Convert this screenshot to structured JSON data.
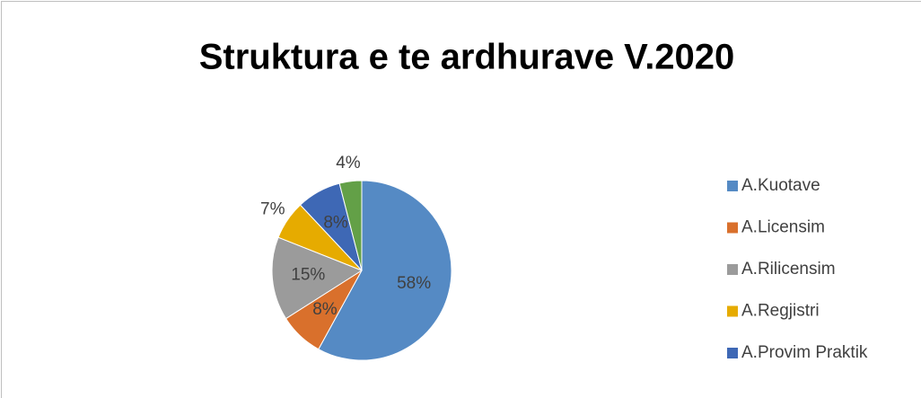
{
  "chart_data": {
    "type": "pie",
    "title": "Struktura e te ardhurave V.2020",
    "categories": [
      "A.Kuotave",
      "A.Licensim",
      "A.Rilicensim",
      "A.Regjistri",
      "A.Provim Praktik",
      null
    ],
    "values": [
      58,
      8,
      15,
      7,
      8,
      4
    ],
    "value_labels": [
      "58%",
      "8%",
      "15%",
      "7%",
      "8%",
      "4%"
    ],
    "colors": [
      "#558ac4",
      "#d9702c",
      "#9b9b9b",
      "#e6ab00",
      "#3e68b5",
      "#63a047"
    ],
    "legend": "right"
  }
}
